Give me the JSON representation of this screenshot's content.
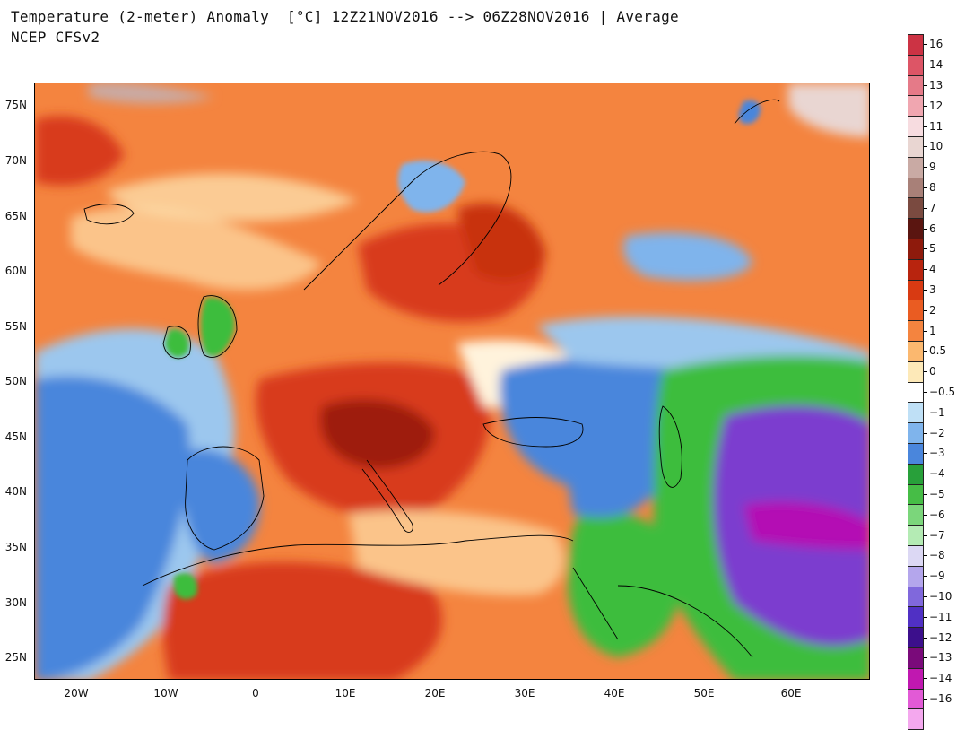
{
  "header": {
    "title": "Temperature (2-meter) Anomaly  [°C] 12Z21NOV2016 --> 06Z28NOV2016 | Average",
    "subtitle": "NCEP CFSv2"
  },
  "map": {
    "lat_labels": [
      "75N",
      "70N",
      "65N",
      "60N",
      "55N",
      "50N",
      "45N",
      "40N",
      "35N",
      "30N",
      "25N"
    ],
    "lon_labels": [
      "20W",
      "10W",
      "0",
      "10E",
      "20E",
      "30E",
      "40E",
      "50E",
      "60E"
    ],
    "colors": {
      "ocean_warm": "#f4843f",
      "hot": "#d83a1a",
      "very_hot": "#9e1a0a",
      "mild": "#fbc48a",
      "neutral": "#fff3dc",
      "cool": "#9cc7ee",
      "cold": "#4a86dc",
      "very_cold": "#2f5fd0",
      "green": "#3cbd3c",
      "purple": "#7b3ccf",
      "magenta": "#b40fb4"
    }
  },
  "colorbar": {
    "entries": [
      {
        "label": "16",
        "color": "#cc3344"
      },
      {
        "label": "14",
        "color": "#dd5566"
      },
      {
        "label": "13",
        "color": "#e57a88"
      },
      {
        "label": "12",
        "color": "#f0a6b0"
      },
      {
        "label": "11",
        "color": "#f7dce0"
      },
      {
        "label": "10",
        "color": "#e9d6d2"
      },
      {
        "label": "9",
        "color": "#c9aaa4"
      },
      {
        "label": "8",
        "color": "#a88078"
      },
      {
        "label": "7",
        "color": "#7a4a40"
      },
      {
        "label": "6",
        "color": "#5a1510"
      },
      {
        "label": "5",
        "color": "#8e1a0c"
      },
      {
        "label": "4",
        "color": "#b8240e"
      },
      {
        "label": "3",
        "color": "#d83a12"
      },
      {
        "label": "2",
        "color": "#ea5c22"
      },
      {
        "label": "1",
        "color": "#f4843f"
      },
      {
        "label": "0.5",
        "color": "#fbb86f"
      },
      {
        "label": "0",
        "color": "#fde9b8"
      },
      {
        "label": "−0.5",
        "color": "#ffffff"
      },
      {
        "label": "−1",
        "color": "#bfe0f6"
      },
      {
        "label": "−2",
        "color": "#7fb4ec"
      },
      {
        "label": "−3",
        "color": "#4a86dc"
      },
      {
        "label": "−4",
        "color": "#28a03a"
      },
      {
        "label": "−5",
        "color": "#46bd46"
      },
      {
        "label": "−6",
        "color": "#7bd67b"
      },
      {
        "label": "−7",
        "color": "#b4ebb4"
      },
      {
        "label": "−8",
        "color": "#dcd8f4"
      },
      {
        "label": "−9",
        "color": "#b4a6ec"
      },
      {
        "label": "−10",
        "color": "#8068dc"
      },
      {
        "label": "−11",
        "color": "#5030c4"
      },
      {
        "label": "−12",
        "color": "#3c0f8c"
      },
      {
        "label": "−13",
        "color": "#7a0a7a"
      },
      {
        "label": "−14",
        "color": "#c018b0"
      },
      {
        "label": "−16",
        "color": "#e25ad6"
      },
      {
        "label": "",
        "color": "#f4a8ee"
      }
    ]
  }
}
